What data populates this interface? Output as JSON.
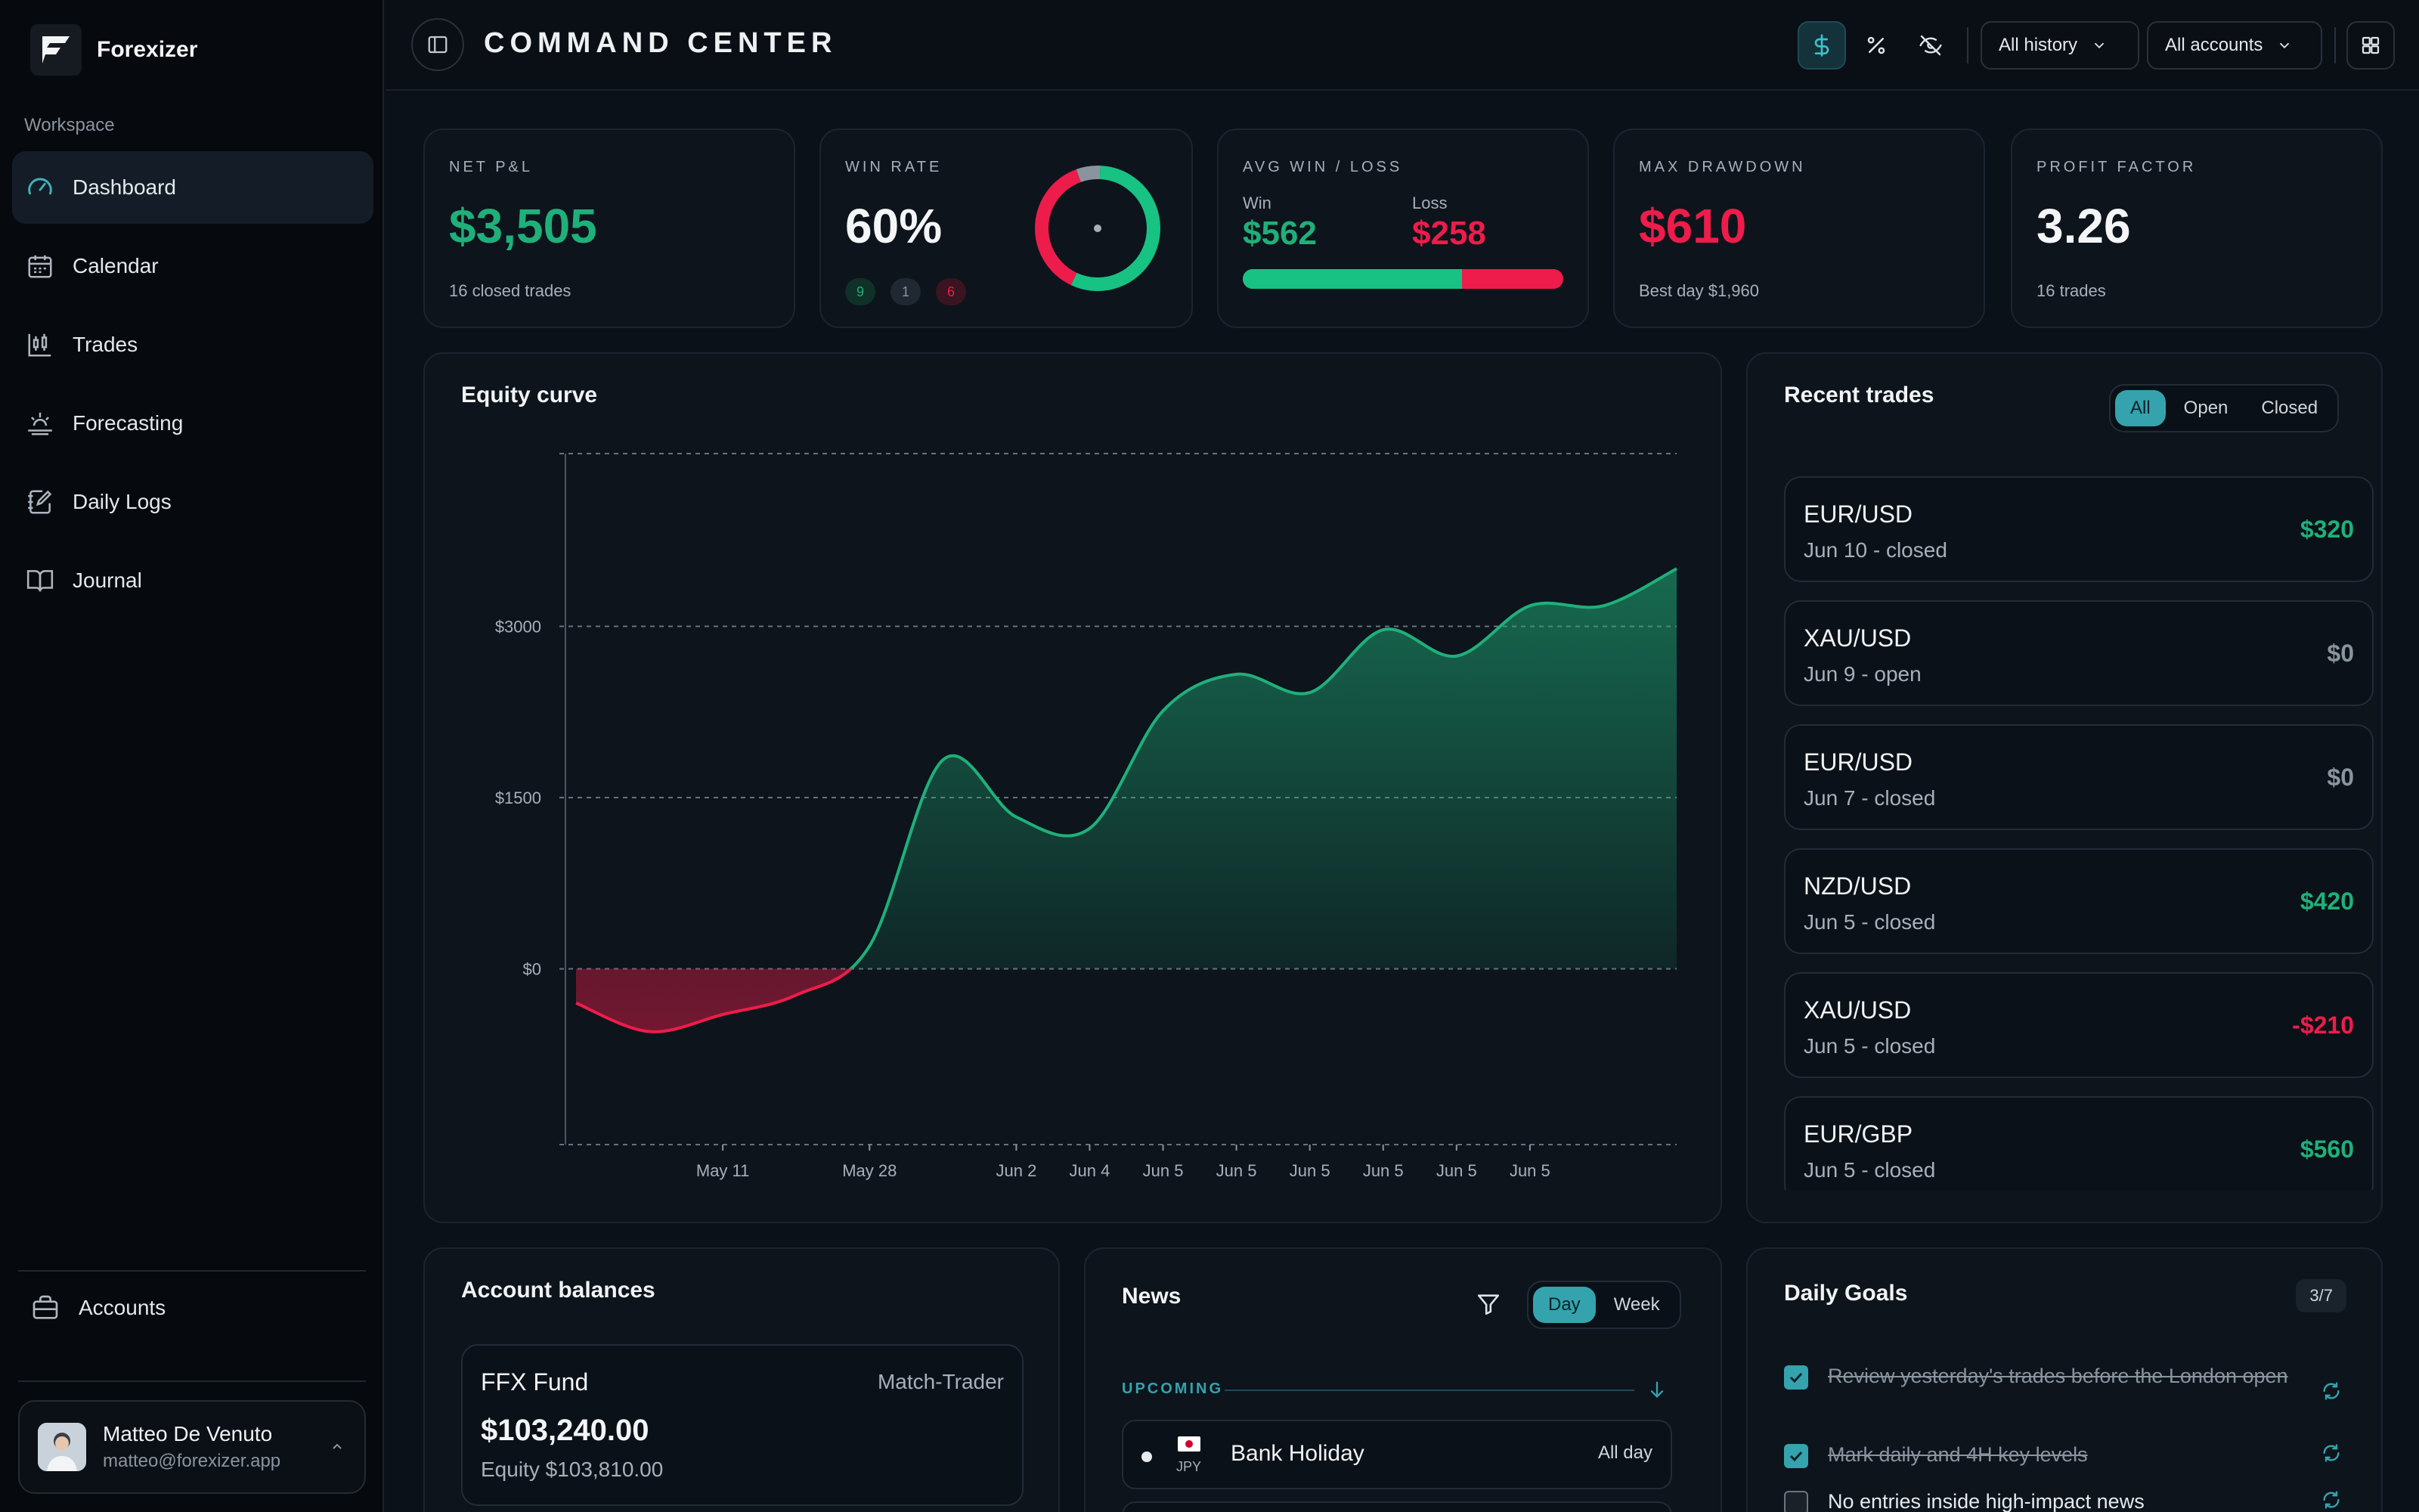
{
  "sidebar": {
    "brand": "Forexizer",
    "workspace_label": "Workspace",
    "items": [
      {
        "label": "Dashboard",
        "icon": "gauge-icon",
        "active": true
      },
      {
        "label": "Calendar",
        "icon": "calendar-icon"
      },
      {
        "label": "Trades",
        "icon": "candlestick-icon"
      },
      {
        "label": "Forecasting",
        "icon": "forecast-icon"
      },
      {
        "label": "Daily Logs",
        "icon": "notebook-pen-icon"
      },
      {
        "label": "Journal",
        "icon": "book-open-icon"
      }
    ],
    "accounts_label": "Accounts",
    "user": {
      "name": "Matteo De Venuto",
      "email": "matteo@forexizer.app"
    }
  },
  "header": {
    "title": "COMMAND CENTER",
    "history_select": "All history",
    "accounts_select": "All accounts",
    "icons": [
      "dollar-icon",
      "percent-icon",
      "eye-off-icon",
      "layout-grid-icon"
    ]
  },
  "stats": {
    "net_pnl": {
      "label": "NET P&L",
      "value": "$3,505",
      "sub": "16 closed trades"
    },
    "win_rate": {
      "label": "WIN RATE",
      "value": "60%",
      "wins": "9",
      "breakeven": "1",
      "losses": "6",
      "donut": {
        "win": 9,
        "breakeven": 1,
        "loss": 6
      }
    },
    "avg_win_loss": {
      "label": "AVG WIN / LOSS",
      "win_label": "Win",
      "win_value": "$562",
      "loss_label": "Loss",
      "loss_value": "$258",
      "win_fraction": 0.685
    },
    "max_drawdown": {
      "label": "MAX DRAWDOWN",
      "value": "$610",
      "sub": "Best day $1,960"
    },
    "profit_factor": {
      "label": "PROFIT FACTOR",
      "value": "3.26",
      "sub": "16 trades"
    }
  },
  "equity": {
    "title": "Equity curve"
  },
  "chart_data": {
    "type": "area",
    "title": "Equity curve",
    "xlabel": "",
    "ylabel": "",
    "ylim": [
      -1500,
      4500
    ],
    "yticks": [
      0,
      1500,
      3000
    ],
    "ytick_labels": [
      "$0",
      "$1500",
      "$3000"
    ],
    "x_tick_labels": [
      "May 11",
      "May 28",
      "Jun 2",
      "Jun 4",
      "Jun 5",
      "Jun 5",
      "Jun 5",
      "Jun 5",
      "Jun 5",
      "Jun 5"
    ],
    "x_tick_positions": [
      2,
      4,
      6,
      7,
      8,
      9,
      10,
      11,
      12,
      13
    ],
    "x": [
      0,
      1,
      2,
      3,
      4,
      5,
      6,
      7,
      8,
      9,
      10,
      11,
      12,
      13,
      14,
      15
    ],
    "values": [
      -300,
      -550,
      -400,
      -230,
      200,
      1830,
      1330,
      1230,
      2260,
      2580,
      2420,
      2970,
      2740,
      3180,
      3180,
      3505
    ],
    "colors": {
      "positive": "#1fb07a",
      "negative": "#ee1c4a"
    },
    "grid": true
  },
  "recent": {
    "title": "Recent trades",
    "filters": [
      "All",
      "Open",
      "Closed"
    ],
    "trades": [
      {
        "pair": "EUR/USD",
        "meta": "Jun 10 - closed",
        "pnl": "$320",
        "tone": "green"
      },
      {
        "pair": "XAU/USD",
        "meta": "Jun 9 - open",
        "pnl": "$0",
        "tone": "grey"
      },
      {
        "pair": "EUR/USD",
        "meta": "Jun 7 - closed",
        "pnl": "$0",
        "tone": "grey"
      },
      {
        "pair": "NZD/USD",
        "meta": "Jun 5 - closed",
        "pnl": "$420",
        "tone": "green"
      },
      {
        "pair": "XAU/USD",
        "meta": "Jun 5 - closed",
        "pnl": "-$210",
        "tone": "red"
      },
      {
        "pair": "EUR/GBP",
        "meta": "Jun 5 - closed",
        "pnl": "$560",
        "tone": "green"
      }
    ]
  },
  "balances": {
    "title": "Account balances",
    "account": {
      "name": "FFX Fund",
      "platform": "Match-Trader",
      "balance": "$103,240.00",
      "equity": "Equity $103,810.00"
    }
  },
  "news": {
    "title": "News",
    "tabs": [
      "Day",
      "Week"
    ],
    "section": "UPCOMING",
    "event": {
      "title": "Bank Holiday",
      "currency": "JPY",
      "time": "All day"
    }
  },
  "goals": {
    "title": "Daily Goals",
    "count": "3/7",
    "items": [
      {
        "text": "Review yesterday's trades before the London open",
        "done": true
      },
      {
        "text": "Mark daily and 4H key levels",
        "done": true
      },
      {
        "text": "No entries inside high-impact news",
        "done": false
      }
    ]
  }
}
